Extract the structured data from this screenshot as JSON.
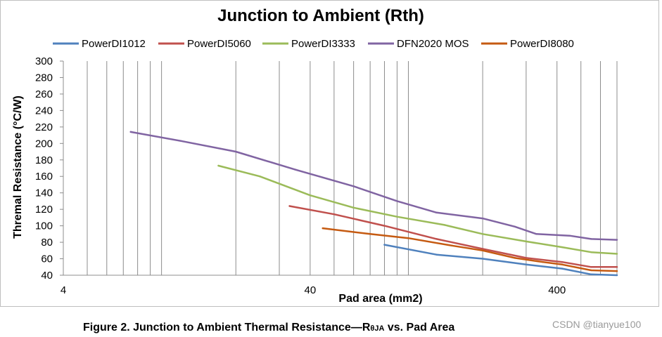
{
  "chart_data": {
    "type": "line",
    "title": "Junction to Ambient (Rth)",
    "xlabel": "Pad area (mm2)",
    "ylabel": "Thremal Resistance (°C/W)",
    "x_scale": "log",
    "xlim": [
      4,
      700
    ],
    "ylim": [
      40,
      300
    ],
    "x_tick_labels": [
      "4",
      "40",
      "400"
    ],
    "y_ticks": [
      40,
      60,
      80,
      100,
      120,
      140,
      160,
      180,
      200,
      220,
      240,
      260,
      280,
      300
    ],
    "grid": "vertical",
    "legend_position": "top",
    "series": [
      {
        "name": "PowerDI1012",
        "color": "#4f81bd",
        "points": [
          [
            80,
            77
          ],
          [
            130,
            65
          ],
          [
            200,
            60
          ],
          [
            300,
            53
          ],
          [
            420,
            48
          ],
          [
            550,
            41
          ],
          [
            700,
            40
          ]
        ]
      },
      {
        "name": "PowerDI5060",
        "color": "#c0504d",
        "points": [
          [
            33,
            124
          ],
          [
            50,
            114
          ],
          [
            80,
            100
          ],
          [
            130,
            84
          ],
          [
            200,
            72
          ],
          [
            300,
            61
          ],
          [
            420,
            56
          ],
          [
            550,
            50
          ],
          [
            700,
            50
          ]
        ]
      },
      {
        "name": "PowerDI3333",
        "color": "#9bbb59",
        "points": [
          [
            17,
            173
          ],
          [
            25,
            160
          ],
          [
            40,
            137
          ],
          [
            60,
            122
          ],
          [
            90,
            111
          ],
          [
            140,
            101
          ],
          [
            200,
            90
          ],
          [
            300,
            81
          ],
          [
            420,
            74
          ],
          [
            550,
            68
          ],
          [
            700,
            66
          ]
        ]
      },
      {
        "name": "DFN2020 MOS",
        "color": "#8064a2",
        "points": [
          [
            7.5,
            214
          ],
          [
            12,
            203
          ],
          [
            20,
            190
          ],
          [
            35,
            168
          ],
          [
            60,
            148
          ],
          [
            90,
            130
          ],
          [
            130,
            116
          ],
          [
            200,
            109
          ],
          [
            270,
            99
          ],
          [
            330,
            90
          ],
          [
            450,
            88
          ],
          [
            550,
            84
          ],
          [
            700,
            83
          ]
        ]
      },
      {
        "name": "PowerDI8080",
        "color": "#c55a11",
        "points": [
          [
            45,
            97
          ],
          [
            70,
            90
          ],
          [
            100,
            85
          ],
          [
            150,
            76
          ],
          [
            200,
            70
          ],
          [
            270,
            61
          ],
          [
            350,
            56
          ],
          [
            420,
            53
          ],
          [
            550,
            46
          ],
          [
            700,
            45
          ]
        ]
      }
    ]
  },
  "caption": {
    "main": "Figure 2. Junction to Ambient Thermal Resistance—R",
    "sub": "θJA",
    "tail": " vs. Pad Area"
  },
  "watermark": "CSDN @tianyue100"
}
